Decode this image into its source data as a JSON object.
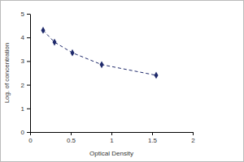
{
  "chart_data": {
    "type": "line",
    "x_label": "Optical Density",
    "y_label": "Log. of concentration",
    "x": [
      0.16,
      0.3,
      0.52,
      0.88,
      1.55
    ],
    "values": [
      4.3,
      3.8,
      3.35,
      2.85,
      2.4
    ],
    "color": "#1f2a6b",
    "marker": "diamond",
    "line_style": "dashed",
    "xlim": [
      0,
      2
    ],
    "xticks": [
      0,
      0.5,
      1,
      1.5,
      2
    ],
    "ylim": [
      0,
      5
    ],
    "yticks": [
      0,
      1,
      2,
      3,
      4,
      5
    ],
    "grid": false
  }
}
